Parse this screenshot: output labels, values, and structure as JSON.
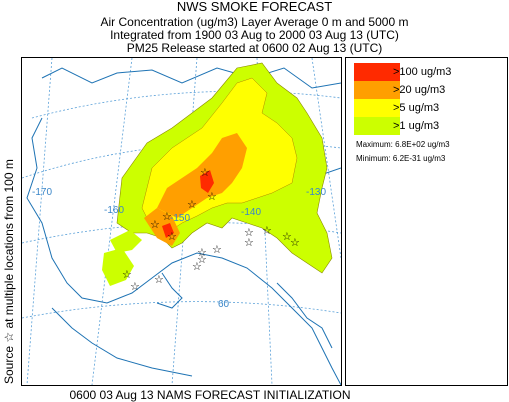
{
  "header": {
    "line1": "NWS SMOKE FORECAST",
    "line2": "Air Concentration (ug/m3) Layer Average    0 m and  5000 m",
    "line3": "Integrated from 1900 03 Aug to 2000 03 Aug 13 (UTC)",
    "line4": "PM25 Release started at 0600 02 Aug 13 (UTC)"
  },
  "side_label": "Source ☆     at multiple locations     from   100 m",
  "footer": "0600 03 Aug 13 NAMS FORECAST INITIALIZATION",
  "legend": {
    "items": [
      {
        "label": ">100 ug/m3",
        "color": "#ff2a00"
      },
      {
        "label": ">20 ug/m3",
        "color": "#ff9f00"
      },
      {
        "label": ">5 ug/m3",
        "color": "#ffff00"
      },
      {
        "label": ">1 ug/m3",
        "color": "#ccff00"
      }
    ],
    "maximum": "Maximum: 6.8E+02 ug/m3",
    "minimum": "Minimum: 6.2E-31 ug/m3"
  },
  "map": {
    "lon_labels": [
      "-170",
      "-160",
      "-150",
      "-140",
      "-130"
    ],
    "lat_labels": [
      "60"
    ],
    "coast_color": "#1e73b4",
    "grid_color": "#5aa0d8"
  }
}
